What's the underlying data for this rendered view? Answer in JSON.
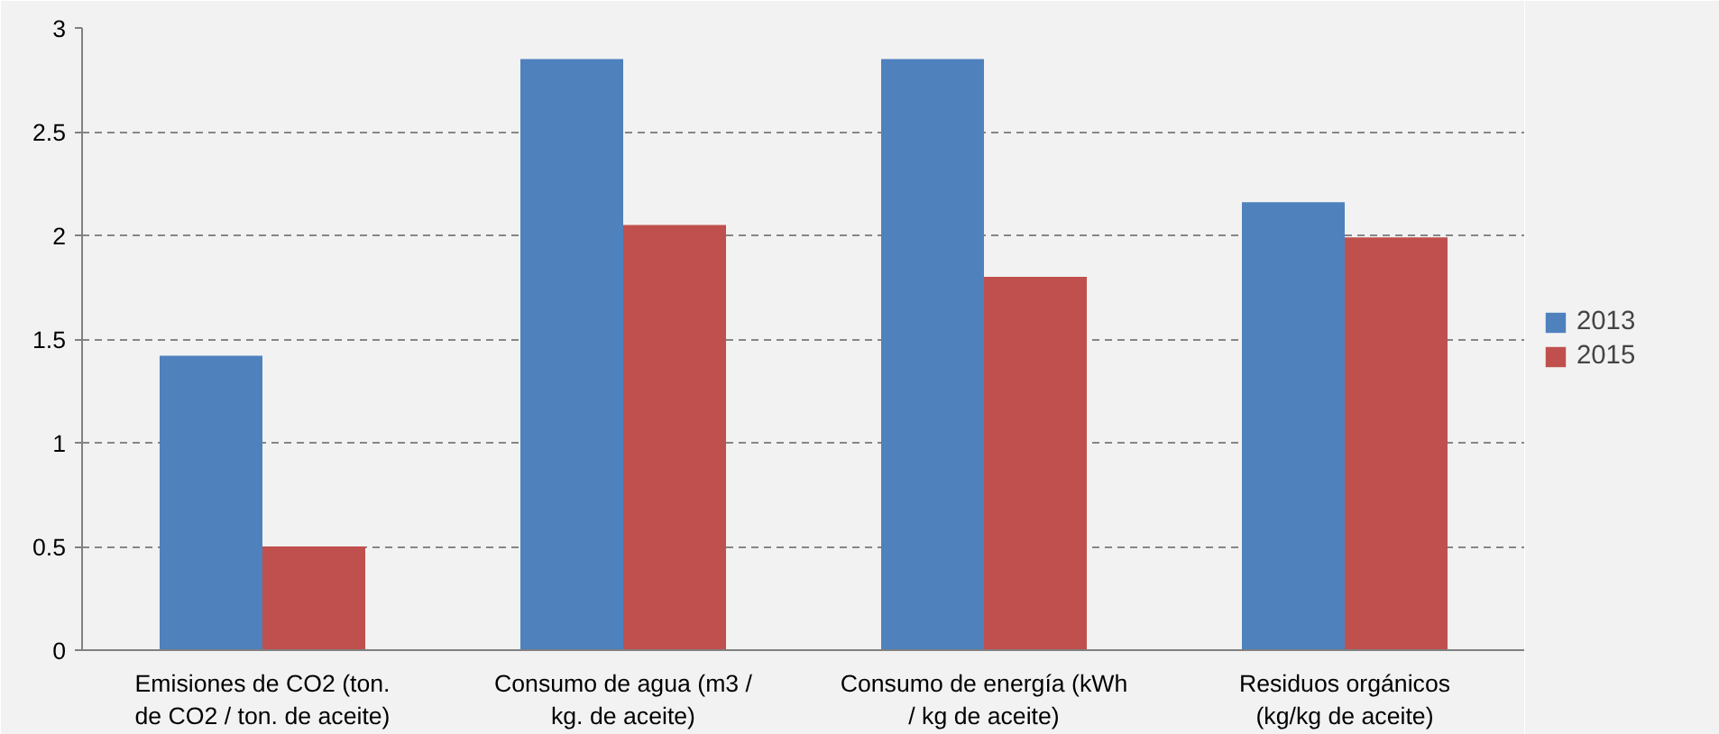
{
  "chart_data": {
    "type": "bar",
    "categories": [
      "Emisiones de CO2 (ton. de CO2 / ton. de aceite)",
      "Consumo de agua (m3 / kg. de aceite)",
      "Consumo de energía (kWh / kg de aceite)",
      "Residuos orgánicos (kg/kg de aceite)"
    ],
    "series": [
      {
        "name": "2013",
        "color": "#4f81bd",
        "values": [
          1.42,
          2.85,
          2.85,
          2.16
        ]
      },
      {
        "name": "2015",
        "color": "#c0504d",
        "values": [
          0.5,
          2.05,
          1.8,
          1.99
        ]
      }
    ],
    "ylim": [
      0,
      3
    ],
    "yticks": [
      0,
      0.5,
      1,
      1.5,
      2,
      2.5,
      3
    ],
    "grid": "y",
    "legend": "right"
  }
}
